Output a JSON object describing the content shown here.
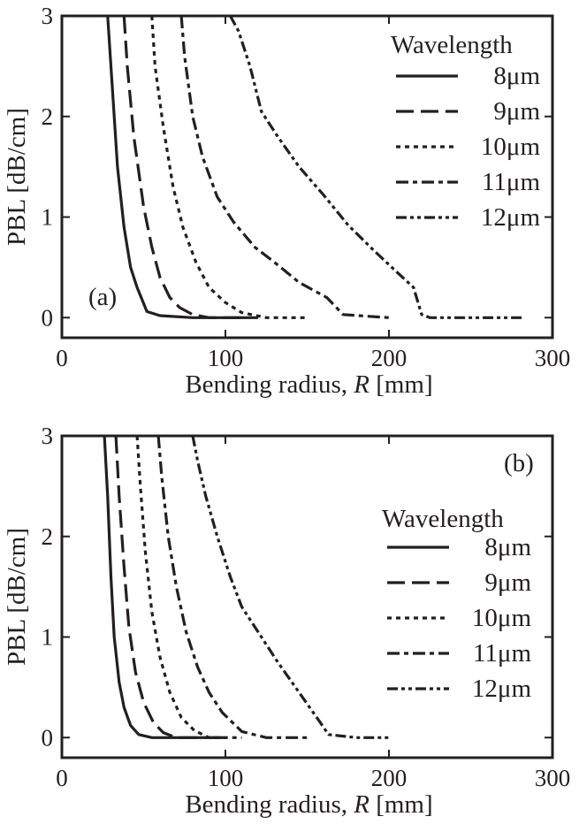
{
  "chart_data": [
    {
      "type": "line",
      "panel_label": "(a)",
      "xlabel_prefix": "Bending radius, ",
      "xlabel_var": "R",
      "xlabel_suffix": " [mm]",
      "ylabel": "PBL [dB/cm]",
      "xlim": [
        0,
        300
      ],
      "ylim": [
        -0.2,
        3
      ],
      "xticks": [
        0,
        100,
        200,
        300
      ],
      "yticks": [
        0,
        1,
        2,
        3
      ],
      "legend_title": "Wavelength",
      "legend_position": "top-right",
      "series": [
        {
          "name": "8μm",
          "dash": "solid",
          "x": [
            28,
            30,
            34,
            38,
            42,
            46,
            52,
            60,
            80,
            100,
            120
          ],
          "y": [
            3.0,
            2.5,
            1.5,
            0.9,
            0.5,
            0.3,
            0.06,
            0.02,
            0.0,
            0.0,
            0.0
          ]
        },
        {
          "name": "9μm",
          "dash": "long-dash",
          "x": [
            38,
            40,
            44,
            50,
            55,
            60,
            66,
            72,
            80,
            90,
            110
          ],
          "y": [
            3.0,
            2.5,
            1.8,
            1.1,
            0.7,
            0.4,
            0.2,
            0.1,
            0.03,
            0.0,
            0.0
          ]
        },
        {
          "name": "10μm",
          "dash": "dotted",
          "x": [
            55,
            57,
            62,
            68,
            74,
            82,
            90,
            100,
            110,
            125,
            150
          ],
          "y": [
            3.0,
            2.5,
            1.9,
            1.3,
            0.9,
            0.55,
            0.3,
            0.15,
            0.05,
            0.0,
            0.0
          ]
        },
        {
          "name": "11μm",
          "dash": "dash-dot",
          "x": [
            73,
            75,
            80,
            86,
            95,
            105,
            118,
            130,
            145,
            162,
            172,
            200
          ],
          "y": [
            3.0,
            2.6,
            2.0,
            1.6,
            1.2,
            0.95,
            0.7,
            0.55,
            0.35,
            0.2,
            0.03,
            0.0
          ]
        },
        {
          "name": "12μm",
          "dash": "dash-dot-dot",
          "x": [
            103,
            108,
            115,
            122,
            132,
            145,
            160,
            175,
            190,
            205,
            215,
            220,
            225,
            250,
            282
          ],
          "y": [
            3.0,
            2.85,
            2.5,
            2.05,
            1.8,
            1.5,
            1.22,
            0.92,
            0.68,
            0.45,
            0.3,
            0.03,
            0.0,
            0.0,
            0.0
          ]
        }
      ]
    },
    {
      "type": "line",
      "panel_label": "(b)",
      "xlabel_prefix": "Bending radius, ",
      "xlabel_var": "R",
      "xlabel_suffix": " [mm]",
      "ylabel": "PBL [dB/cm]",
      "xlim": [
        0,
        300
      ],
      "ylim": [
        -0.2,
        3
      ],
      "xticks": [
        0,
        100,
        200,
        300
      ],
      "yticks": [
        0,
        1,
        2,
        3
      ],
      "legend_title": "Wavelength",
      "legend_position": "right",
      "series": [
        {
          "name": "8μm",
          "dash": "solid",
          "x": [
            26,
            28,
            30,
            32,
            35,
            38,
            42,
            47,
            55,
            70,
            100
          ],
          "y": [
            3.0,
            2.4,
            1.6,
            1.0,
            0.55,
            0.3,
            0.12,
            0.03,
            0.0,
            0.0,
            0.0
          ]
        },
        {
          "name": "9μm",
          "dash": "long-dash",
          "x": [
            33,
            35,
            38,
            41,
            45,
            50,
            56,
            62,
            70,
            100
          ],
          "y": [
            3.0,
            2.4,
            1.7,
            1.1,
            0.65,
            0.35,
            0.15,
            0.05,
            0.0,
            0.0
          ]
        },
        {
          "name": "10μm",
          "dash": "dotted",
          "x": [
            46,
            48,
            51,
            55,
            60,
            66,
            73,
            81,
            90,
            110
          ],
          "y": [
            3.0,
            2.5,
            1.85,
            1.25,
            0.8,
            0.45,
            0.2,
            0.07,
            0.0,
            0.0
          ]
        },
        {
          "name": "11μm",
          "dash": "dash-dot",
          "x": [
            59,
            61,
            65,
            70,
            76,
            83,
            90,
            98,
            110,
            125,
            150
          ],
          "y": [
            3.0,
            2.6,
            2.0,
            1.5,
            1.05,
            0.7,
            0.45,
            0.25,
            0.06,
            0.0,
            0.0
          ]
        },
        {
          "name": "12μm",
          "dash": "dash-dot-dot",
          "x": [
            80,
            83,
            88,
            95,
            103,
            110,
            120,
            132,
            145,
            158,
            163,
            180,
            200
          ],
          "y": [
            3.0,
            2.75,
            2.4,
            2.0,
            1.6,
            1.3,
            1.05,
            0.75,
            0.45,
            0.15,
            0.03,
            0.0,
            0.0
          ]
        }
      ]
    }
  ]
}
